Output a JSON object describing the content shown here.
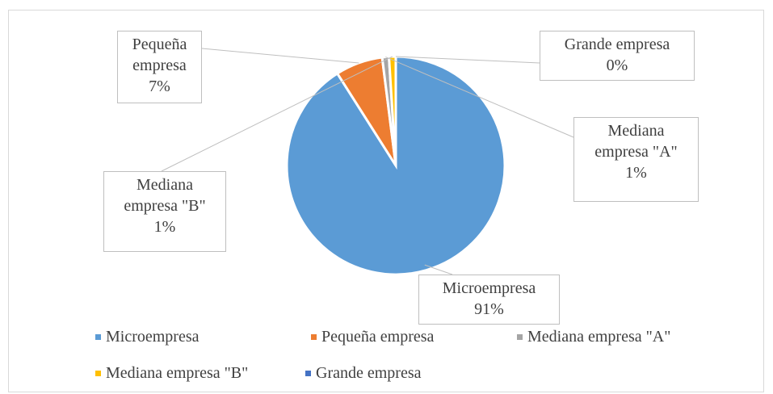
{
  "chart_data": {
    "type": "pie",
    "categories": [
      "Microempresa",
      "Pequeña empresa",
      "Mediana empresa \"A\"",
      "Mediana empresa \"B\"",
      "Grande empresa"
    ],
    "values": [
      91,
      7,
      1,
      1,
      0
    ],
    "value_labels": [
      "91%",
      "7%",
      "1%",
      "1%",
      "0%"
    ],
    "colors": [
      "#5b9bd5",
      "#ed7d31",
      "#a5a5a5",
      "#ffc000",
      "#4472c4"
    ],
    "legend": "bottom"
  }
}
